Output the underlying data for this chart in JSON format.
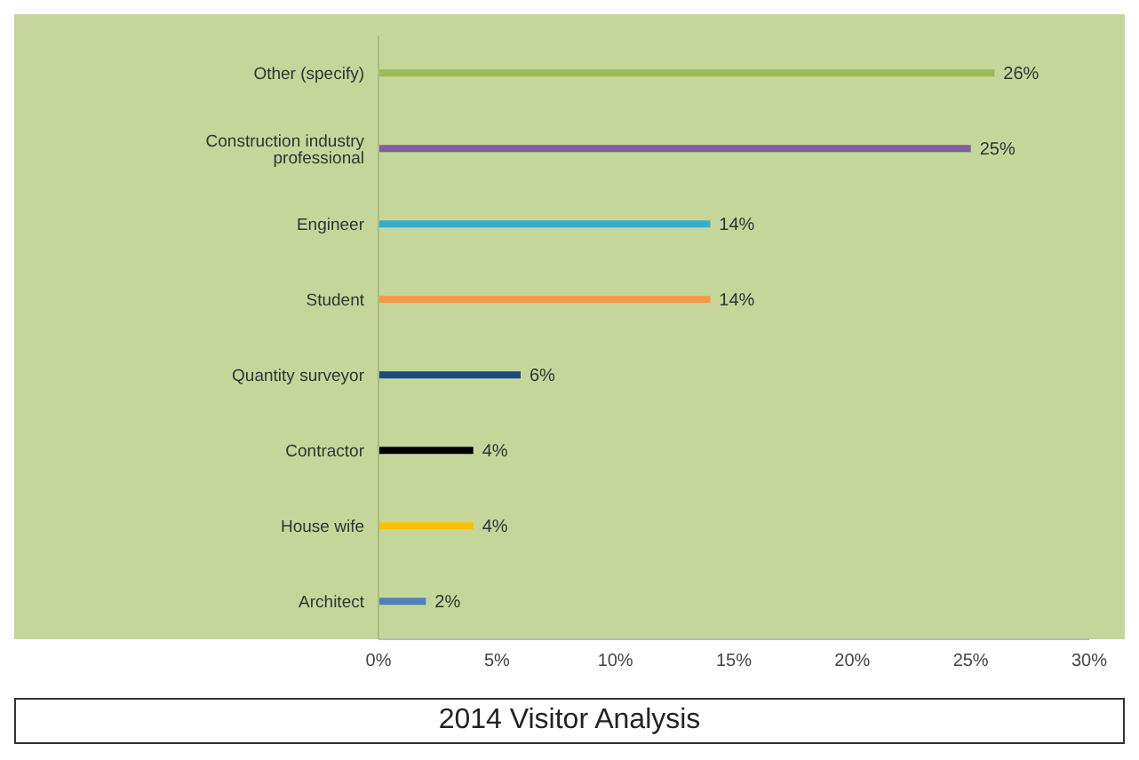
{
  "chart_data": {
    "type": "bar",
    "orientation": "horizontal",
    "title": "2014 Visitor Analysis",
    "categories": [
      "Other (specify)",
      "Construction industry professional",
      "Engineer",
      "Student",
      "Quantity surveyor",
      "Contractor",
      "House wife",
      "Architect"
    ],
    "values": [
      26,
      25,
      14,
      14,
      6,
      4,
      4,
      2
    ],
    "value_labels": [
      "26%",
      "25%",
      "14%",
      "14%",
      "6%",
      "4%",
      "4%",
      "2%"
    ],
    "colors": [
      "#9bbb59",
      "#7f5fa0",
      "#31afd0",
      "#f79646",
      "#1f497d",
      "#000000",
      "#ffc000",
      "#4f81bd"
    ],
    "xlim": [
      0,
      30
    ],
    "xticks": [
      {
        "value": 0,
        "label": "0%"
      },
      {
        "value": 5,
        "label": "5%"
      },
      {
        "value": 10,
        "label": "10%"
      },
      {
        "value": 15,
        "label": "15%"
      },
      {
        "value": 20,
        "label": "20%"
      },
      {
        "value": 25,
        "label": "25%"
      },
      {
        "value": 30,
        "label": "30%"
      }
    ]
  }
}
